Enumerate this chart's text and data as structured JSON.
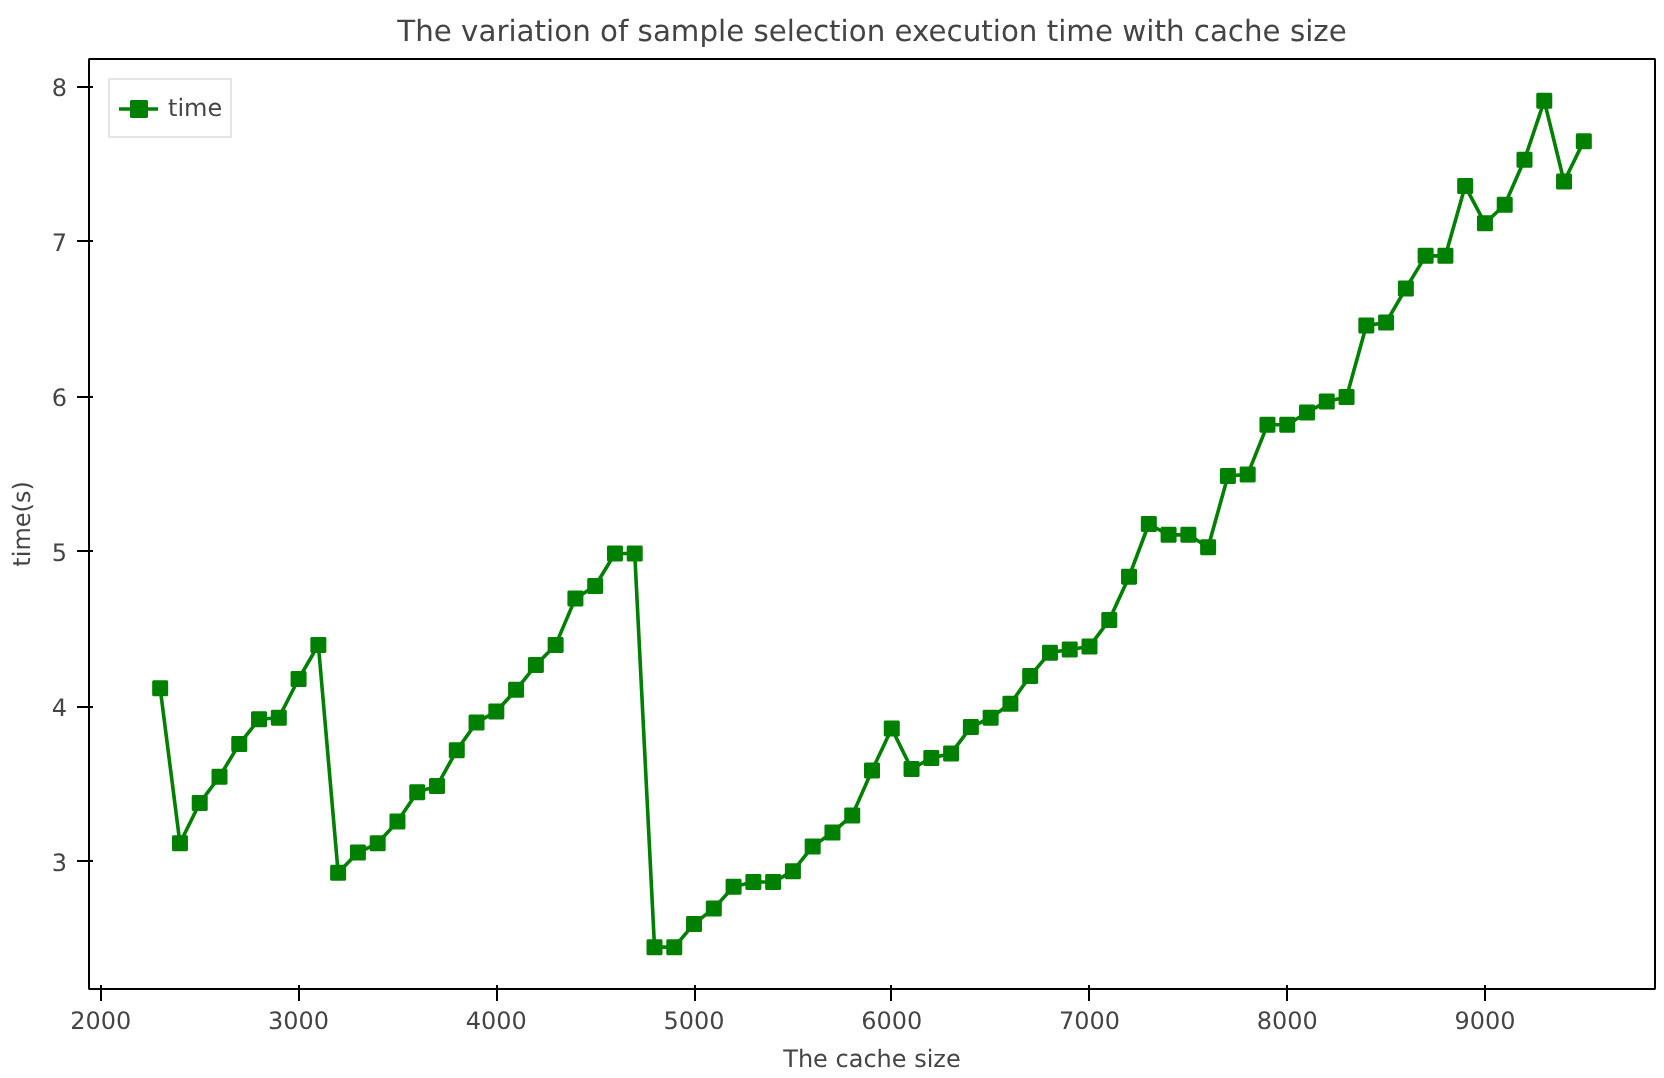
{
  "chart_data": {
    "type": "line",
    "title": "The variation of sample selection execution time with cache size",
    "xlabel": "The cache size",
    "ylabel": "time(s)",
    "x": [
      2300,
      2400,
      2500,
      2600,
      2700,
      2800,
      2900,
      3000,
      3100,
      3200,
      3300,
      3400,
      3500,
      3600,
      3700,
      3800,
      3900,
      4000,
      4100,
      4200,
      4300,
      4400,
      4500,
      4600,
      4700,
      4800,
      4900,
      5000,
      5100,
      5200,
      5300,
      5400,
      5500,
      5600,
      5700,
      5800,
      5900,
      6000,
      6100,
      6200,
      6300,
      6400,
      6500,
      6600,
      6700,
      6800,
      6900,
      7000,
      7100,
      7200,
      7300,
      7400,
      7500,
      7600,
      7700,
      7800,
      7900,
      8000,
      8100,
      8200,
      8300,
      8400,
      8500,
      8600,
      8700,
      8800,
      8900,
      9000,
      9100,
      9200,
      9300,
      9400,
      9500
    ],
    "series": [
      {
        "name": "time",
        "color": "#008000",
        "values": [
          4.12,
          3.12,
          3.38,
          3.55,
          3.76,
          3.92,
          3.93,
          4.18,
          4.4,
          2.93,
          3.06,
          3.12,
          3.26,
          3.45,
          3.49,
          3.72,
          3.9,
          3.97,
          4.11,
          4.27,
          4.4,
          4.7,
          4.78,
          4.99,
          4.99,
          2.45,
          2.45,
          2.6,
          2.7,
          2.84,
          2.87,
          2.87,
          2.94,
          3.1,
          3.19,
          3.3,
          3.59,
          3.86,
          3.6,
          3.67,
          3.7,
          3.87,
          3.93,
          4.02,
          4.2,
          4.35,
          4.37,
          4.39,
          4.56,
          4.84,
          5.18,
          5.11,
          5.11,
          5.03,
          5.49,
          5.5,
          5.82,
          5.82,
          5.9,
          5.97,
          6.0,
          6.46,
          6.48,
          6.7,
          6.91,
          6.91,
          7.36,
          7.12,
          7.24,
          7.53,
          7.91,
          7.39,
          7.65
        ]
      }
    ],
    "xlim": [
      1940,
      9860
    ],
    "ylim": [
      2.18,
      8.18
    ],
    "xticks": [
      2000,
      3000,
      4000,
      5000,
      6000,
      7000,
      8000,
      9000
    ],
    "yticks": [
      3,
      4,
      5,
      6,
      7,
      8
    ],
    "grid": false,
    "legend": "top left",
    "marker": "square",
    "line_style": "solid"
  }
}
